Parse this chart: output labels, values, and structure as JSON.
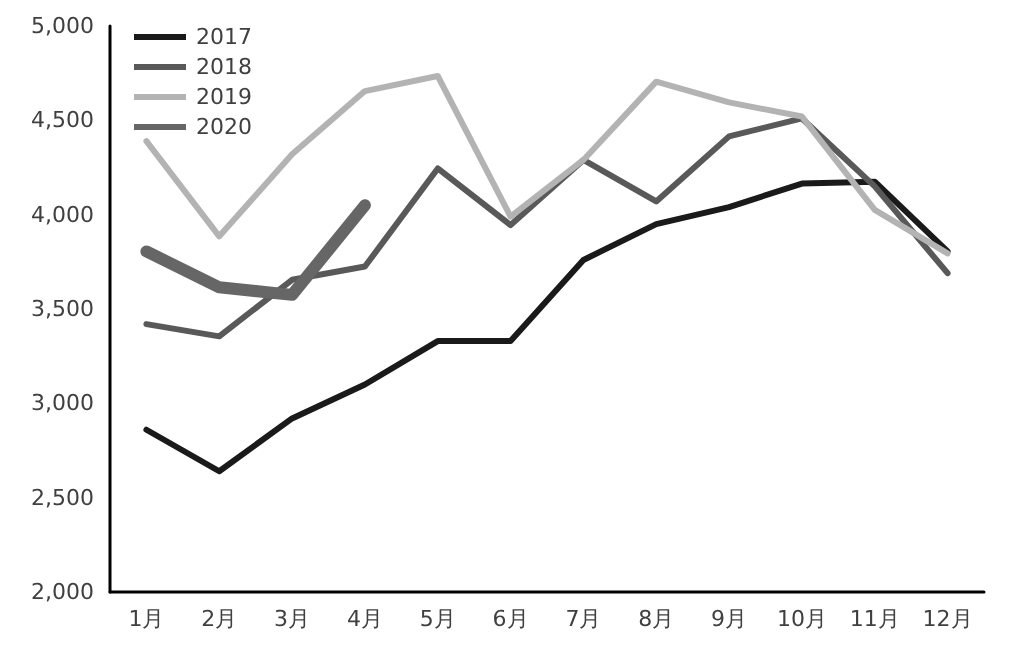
{
  "chart_data": {
    "type": "line",
    "categories": [
      "1月",
      "2月",
      "3月",
      "4月",
      "5月",
      "6月",
      "7月",
      "8月",
      "9月",
      "10月",
      "11月",
      "12月"
    ],
    "series": [
      {
        "name": "2017",
        "color": "#1a1a1a",
        "values": [
          2860,
          2640,
          2920,
          3100,
          3330,
          3330,
          3760,
          3950,
          4040,
          4165,
          4175,
          3805
        ]
      },
      {
        "name": "2018",
        "color": "#595959",
        "values": [
          3420,
          3355,
          3655,
          3725,
          4245,
          3945,
          4290,
          4070,
          4415,
          4510,
          4150,
          3690
        ]
      },
      {
        "name": "2019",
        "color": "#b3b3b3",
        "values": [
          4390,
          3885,
          4320,
          4655,
          4735,
          3990,
          4290,
          4705,
          4595,
          4520,
          4025,
          3795
        ]
      },
      {
        "name": "2020",
        "color": "#666666",
        "values": [
          3805,
          3615,
          3575,
          4050,
          null,
          null,
          null,
          null,
          null,
          null,
          null,
          null
        ]
      }
    ],
    "ylim": [
      2000,
      5000
    ],
    "yticks": [
      {
        "value": 2000,
        "label": "2,000"
      },
      {
        "value": 2500,
        "label": "2,500"
      },
      {
        "value": 3000,
        "label": "3,000"
      },
      {
        "value": 3500,
        "label": "3,500"
      },
      {
        "value": 4000,
        "label": "4,000"
      },
      {
        "value": 4500,
        "label": "4,500"
      },
      {
        "value": 5000,
        "label": "5,000"
      }
    ],
    "grid": false,
    "legend": "top left",
    "marker": "none",
    "line_style": "solid"
  }
}
